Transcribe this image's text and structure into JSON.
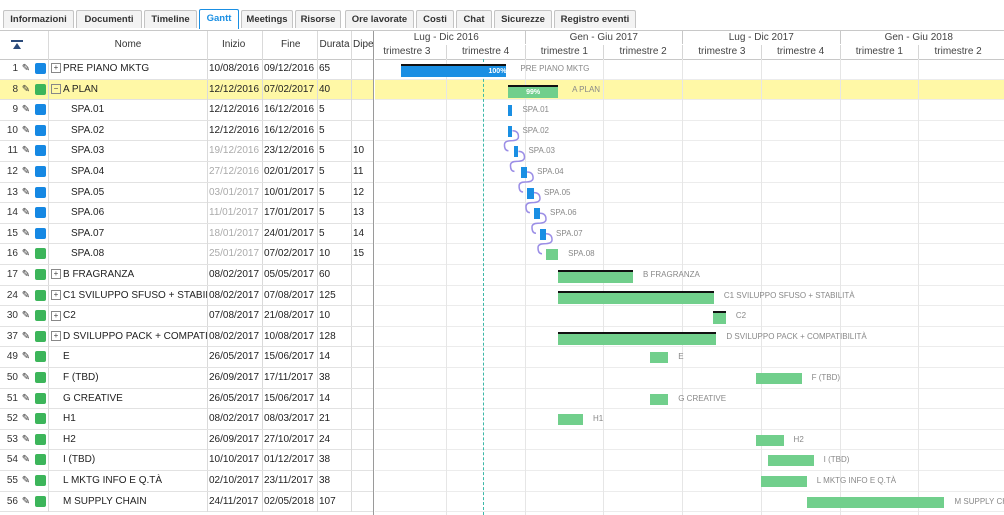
{
  "tabs": [
    "Informazioni",
    "Documenti",
    "Timeline",
    "Gantt",
    "Meetings",
    "Risorse",
    "Ore lavorate",
    "Costi",
    "Chat",
    "Sicurezze",
    "Registro eventi"
  ],
  "active_tab": "Gantt",
  "grid": {
    "headers": {
      "name": "Nome",
      "start": "Inizio",
      "end": "Fine",
      "dur": "Durata",
      "dep": "Dipe"
    }
  },
  "colors": {
    "blue": "#1588e3",
    "green": "#3cb55a",
    "bar_blue": "#1a8fe3",
    "bar_green": "#71cf8c",
    "selected": "#fff8a6"
  },
  "rows": [
    {
      "id": "1",
      "name": "PRE PIANO MKTG",
      "start": "10/08/2016",
      "end": "09/12/2016",
      "dur": "65",
      "dep": "",
      "color": "blue",
      "exp": "+",
      "indent": 0,
      "startGray": false
    },
    {
      "id": "8",
      "name": "A PLAN",
      "start": "12/12/2016",
      "end": "07/02/2017",
      "dur": "40",
      "dep": "",
      "color": "green",
      "exp": "−",
      "indent": 0,
      "startGray": false,
      "sel": true
    },
    {
      "id": "9",
      "name": "SPA.01",
      "start": "12/12/2016",
      "end": "16/12/2016",
      "dur": "5",
      "dep": "",
      "color": "blue",
      "exp": "",
      "indent": 1,
      "startGray": false
    },
    {
      "id": "10",
      "name": "SPA.02",
      "start": "12/12/2016",
      "end": "16/12/2016",
      "dur": "5",
      "dep": "",
      "color": "blue",
      "exp": "",
      "indent": 1,
      "startGray": false
    },
    {
      "id": "11",
      "name": "SPA.03",
      "start": "19/12/2016",
      "end": "23/12/2016",
      "dur": "5",
      "dep": "10",
      "color": "blue",
      "exp": "",
      "indent": 1,
      "startGray": true
    },
    {
      "id": "12",
      "name": "SPA.04",
      "start": "27/12/2016",
      "end": "02/01/2017",
      "dur": "5",
      "dep": "11",
      "color": "blue",
      "exp": "",
      "indent": 1,
      "startGray": true
    },
    {
      "id": "13",
      "name": "SPA.05",
      "start": "03/01/2017",
      "end": "10/01/2017",
      "dur": "5",
      "dep": "12",
      "color": "blue",
      "exp": "",
      "indent": 1,
      "startGray": true
    },
    {
      "id": "14",
      "name": "SPA.06",
      "start": "11/01/2017",
      "end": "17/01/2017",
      "dur": "5",
      "dep": "13",
      "color": "blue",
      "exp": "",
      "indent": 1,
      "startGray": true
    },
    {
      "id": "15",
      "name": "SPA.07",
      "start": "18/01/2017",
      "end": "24/01/2017",
      "dur": "5",
      "dep": "14",
      "color": "blue",
      "exp": "",
      "indent": 1,
      "startGray": true
    },
    {
      "id": "16",
      "name": "SPA.08",
      "start": "25/01/2017",
      "end": "07/02/2017",
      "dur": "10",
      "dep": "15",
      "color": "green",
      "exp": "",
      "indent": 1,
      "startGray": true
    },
    {
      "id": "17",
      "name": "B FRAGRANZA",
      "start": "08/02/2017",
      "end": "05/05/2017",
      "dur": "60",
      "dep": "",
      "color": "green",
      "exp": "+",
      "indent": 0,
      "startGray": false
    },
    {
      "id": "24",
      "name": "C1 SVILUPPO SFUSO + STABILITÀ",
      "start": "08/02/2017",
      "end": "07/08/2017",
      "dur": "125",
      "dep": "",
      "color": "green",
      "exp": "+",
      "indent": 0,
      "startGray": false
    },
    {
      "id": "30",
      "name": "C2",
      "start": "07/08/2017",
      "end": "21/08/2017",
      "dur": "10",
      "dep": "",
      "color": "green",
      "exp": "+",
      "indent": 0,
      "startGray": false
    },
    {
      "id": "37",
      "name": "D SVILUPPO PACK + COMPATIBILITÀ",
      "start": "08/02/2017",
      "end": "10/08/2017",
      "dur": "128",
      "dep": "",
      "color": "green",
      "exp": "+",
      "indent": 0,
      "startGray": false
    },
    {
      "id": "49",
      "name": "E",
      "start": "26/05/2017",
      "end": "15/06/2017",
      "dur": "14",
      "dep": "",
      "color": "green",
      "exp": "",
      "indent": 0,
      "startGray": false
    },
    {
      "id": "50",
      "name": "F (TBD)",
      "start": "26/09/2017",
      "end": "17/11/2017",
      "dur": "38",
      "dep": "",
      "color": "green",
      "exp": "",
      "indent": 0,
      "startGray": false
    },
    {
      "id": "51",
      "name": "G CREATIVE",
      "start": "26/05/2017",
      "end": "15/06/2017",
      "dur": "14",
      "dep": "",
      "color": "green",
      "exp": "",
      "indent": 0,
      "startGray": false
    },
    {
      "id": "52",
      "name": "H1",
      "start": "08/02/2017",
      "end": "08/03/2017",
      "dur": "21",
      "dep": "",
      "color": "green",
      "exp": "",
      "indent": 0,
      "startGray": false
    },
    {
      "id": "53",
      "name": "H2",
      "start": "26/09/2017",
      "end": "27/10/2017",
      "dur": "24",
      "dep": "",
      "color": "green",
      "exp": "",
      "indent": 0,
      "startGray": false
    },
    {
      "id": "54",
      "name": "I (TBD)",
      "start": "10/10/2017",
      "end": "01/12/2017",
      "dur": "38",
      "dep": "",
      "color": "green",
      "exp": "",
      "indent": 0,
      "startGray": false
    },
    {
      "id": "55",
      "name": "L MKTG INFO E Q.TÀ",
      "start": "02/10/2017",
      "end": "23/11/2017",
      "dur": "38",
      "dep": "",
      "color": "green",
      "exp": "",
      "indent": 0,
      "startGray": false
    },
    {
      "id": "56",
      "name": "M SUPPLY CHAIN",
      "start": "24/11/2017",
      "end": "02/05/2018",
      "dur": "107",
      "dep": "",
      "color": "green",
      "exp": "",
      "indent": 0,
      "startGray": false
    }
  ],
  "timeline": {
    "semesters": [
      "Lug - Dic 2016",
      "Gen - Giu 2017",
      "Lug - Dic 2017",
      "Gen - Giu 2018"
    ],
    "quarters": [
      "trimestre 3",
      "trimestre 4",
      "trimestre 1",
      "trimestre 2",
      "trimestre 3",
      "trimestre 4",
      "trimestre 1",
      "trimestre 2"
    ]
  },
  "bars": [
    {
      "row": 0,
      "label": "PRE PIANO MKTG",
      "pct": "100%",
      "summary": true,
      "color": "bar_blue"
    },
    {
      "row": 1,
      "label": "A PLAN",
      "pct": "99%",
      "summary": true,
      "color": "bar_green"
    },
    {
      "row": 2,
      "label": "SPA.01",
      "pct": "",
      "summary": false,
      "color": "bar_blue"
    },
    {
      "row": 3,
      "label": "SPA.02",
      "pct": "",
      "summary": false,
      "color": "bar_blue"
    },
    {
      "row": 4,
      "label": "SPA.03",
      "pct": "",
      "summary": false,
      "color": "bar_blue"
    },
    {
      "row": 5,
      "label": "SPA.04",
      "pct": "",
      "summary": false,
      "color": "bar_blue"
    },
    {
      "row": 6,
      "label": "SPA.05",
      "pct": "",
      "summary": false,
      "color": "bar_blue"
    },
    {
      "row": 7,
      "label": "SPA.06",
      "pct": "",
      "summary": false,
      "color": "bar_blue"
    },
    {
      "row": 8,
      "label": "SPA.07",
      "pct": "",
      "summary": false,
      "color": "bar_blue"
    },
    {
      "row": 9,
      "label": "SPA.08",
      "pct": "",
      "summary": false,
      "color": "bar_green"
    },
    {
      "row": 10,
      "label": "B FRAGRANZA",
      "pct": "",
      "summary": true,
      "color": "bar_green"
    },
    {
      "row": 11,
      "label": "C1 SVILUPPO SFUSO + STABILITÀ",
      "pct": "",
      "summary": true,
      "color": "bar_green"
    },
    {
      "row": 12,
      "label": "C2",
      "pct": "",
      "summary": true,
      "color": "bar_green"
    },
    {
      "row": 13,
      "label": "D SVILUPPO PACK + COMPATIBILITÀ",
      "pct": "",
      "summary": true,
      "color": "bar_green"
    },
    {
      "row": 14,
      "label": "E",
      "pct": "",
      "summary": false,
      "color": "bar_green"
    },
    {
      "row": 15,
      "label": "F (TBD)",
      "pct": "",
      "summary": false,
      "color": "bar_green"
    },
    {
      "row": 16,
      "label": "G CREATIVE",
      "pct": "",
      "summary": false,
      "color": "bar_green"
    },
    {
      "row": 17,
      "label": "H1",
      "pct": "",
      "summary": false,
      "color": "bar_green"
    },
    {
      "row": 18,
      "label": "H2",
      "pct": "",
      "summary": false,
      "color": "bar_green"
    },
    {
      "row": 19,
      "label": "I (TBD)",
      "pct": "",
      "summary": false,
      "color": "bar_green"
    },
    {
      "row": 20,
      "label": "L MKTG INFO E Q.TÀ",
      "pct": "",
      "summary": false,
      "color": "bar_green"
    },
    {
      "row": 21,
      "label": "M SUPPLY CHAIN",
      "pct": "",
      "summary": false,
      "color": "bar_green"
    }
  ]
}
